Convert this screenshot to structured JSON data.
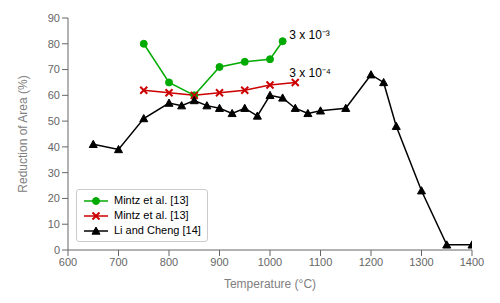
{
  "chart_data": {
    "type": "line",
    "xlabel": "Temperature (°C)",
    "ylabel": "Reduction of Area (%)",
    "xlim": [
      600,
      1400
    ],
    "ylim": [
      0,
      90
    ],
    "xticks": [
      600,
      700,
      800,
      900,
      1000,
      1100,
      1200,
      1300,
      1400
    ],
    "yticks": [
      0,
      10,
      20,
      30,
      40,
      50,
      60,
      70,
      80,
      90
    ],
    "grid": false,
    "legend": "lower left",
    "series": [
      {
        "name": "Mintz et al. [13]",
        "color": "#00aa00",
        "marker": "o",
        "x": [
          750,
          800,
          850,
          900,
          950,
          1000,
          1025
        ],
        "values": [
          80,
          65,
          60,
          71,
          73,
          74,
          81
        ]
      },
      {
        "name": "Mintz et al. [13]",
        "color": "#cc0000",
        "marker": "x",
        "x": [
          750,
          800,
          850,
          900,
          950,
          1000,
          1050
        ],
        "values": [
          62,
          61,
          60,
          61,
          62,
          64,
          65
        ]
      },
      {
        "name": "Li and Cheng [14]",
        "color": "#000000",
        "marker": "^",
        "x": [
          650,
          700,
          750,
          800,
          825,
          850,
          875,
          900,
          925,
          950,
          975,
          1000,
          1025,
          1050,
          1075,
          1100,
          1150,
          1200,
          1225,
          1250,
          1300,
          1350,
          1400
        ],
        "values": [
          41,
          39,
          51,
          57,
          56,
          58,
          56,
          55,
          53,
          55,
          52,
          60,
          59,
          55,
          53,
          54,
          55,
          68,
          65,
          48,
          23,
          2,
          2
        ]
      }
    ],
    "annotations": [
      {
        "text": "3 x 10⁻³",
        "x": 1028,
        "y": 82
      },
      {
        "text": "3 x 10⁻⁴",
        "x": 1028,
        "y": 67
      }
    ]
  }
}
